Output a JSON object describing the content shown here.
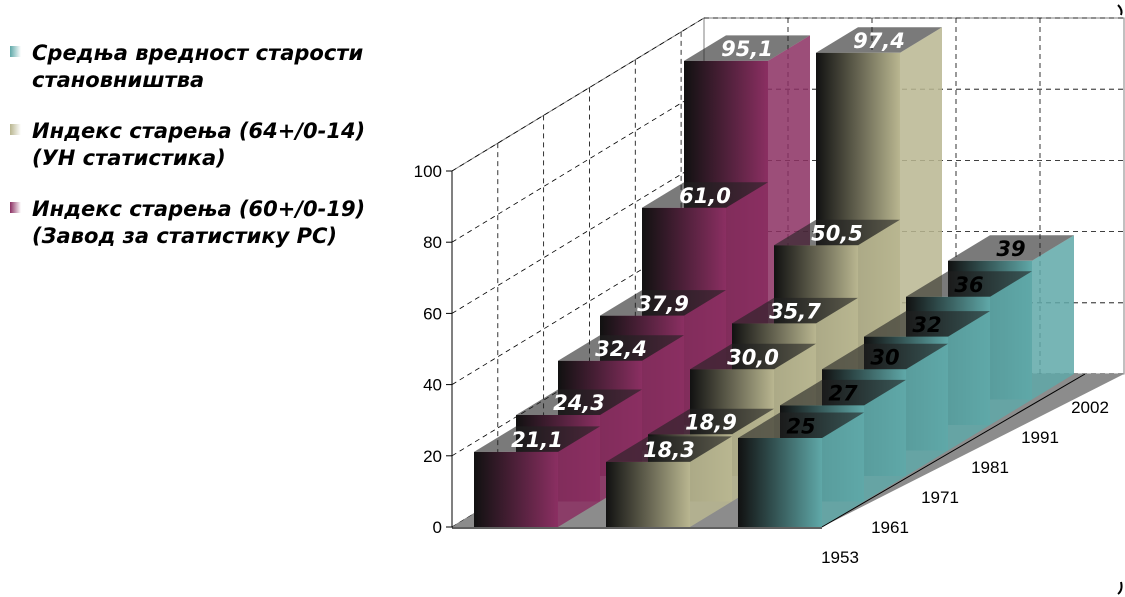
{
  "chart_data": {
    "type": "bar",
    "title": "",
    "xlabel": "",
    "ylabel": "",
    "categories": [
      "1953",
      "1961",
      "1971",
      "1981",
      "1991",
      "2002"
    ],
    "ylim": [
      0,
      100
    ],
    "yticks": [
      "0",
      "20",
      "40",
      "60",
      "80",
      "100"
    ],
    "series": [
      {
        "name": "Средња вредност старости становништва",
        "values": [
          25,
          27,
          30,
          32,
          36,
          39
        ],
        "labels": [
          "25",
          "27",
          "30",
          "32",
          "36",
          "39"
        ],
        "color": "#5fa8a8"
      },
      {
        "name": "Индекс старења (64+/0-14) (УН статистика)",
        "values": [
          18.3,
          18.9,
          30.0,
          35.7,
          50.5,
          97.4
        ],
        "labels": [
          "18,3",
          "18,9",
          "30,0",
          "35,7",
          "50,5",
          "97,4"
        ],
        "color": "#b9b690"
      },
      {
        "name": "Индекс старења (60+/0-19) (Завод за статистику РС)",
        "values": [
          21.1,
          24.3,
          32.4,
          37.9,
          61.0,
          95.1
        ],
        "labels": [
          "21,1",
          "24,3",
          "32,4",
          "37,9",
          "61,0",
          "95,1"
        ],
        "color": "#8b2f62"
      }
    ],
    "grid": true,
    "legend_position": "left"
  },
  "legend": {
    "items": [
      {
        "label": "Средња вредност старости\nстановништва",
        "color": "#5fa8a8"
      },
      {
        "label": "Индекс старења (64+/0-14)\n(УН статистика)",
        "color": "#b9b690"
      },
      {
        "label": "Индекс старења (60+/0-19)\n(Завод за статистику РС)",
        "color": "#8b2f62"
      }
    ]
  }
}
